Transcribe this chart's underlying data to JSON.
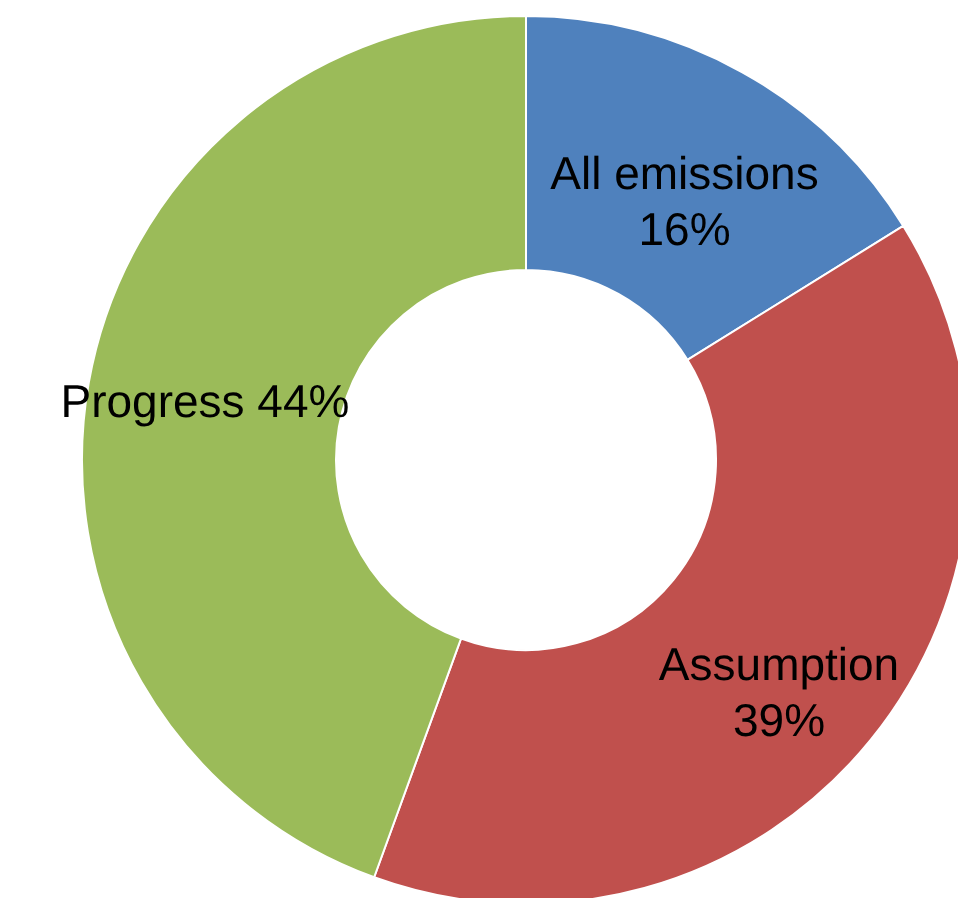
{
  "chart_data": {
    "type": "donut",
    "categories": [
      "All emissions",
      "Assumption",
      "Progress"
    ],
    "values": [
      16,
      39,
      44
    ],
    "value_labels": [
      "16%",
      "39%",
      "44%"
    ],
    "colors": [
      "#4f81bd",
      "#c0504d",
      "#9bbb59"
    ]
  }
}
